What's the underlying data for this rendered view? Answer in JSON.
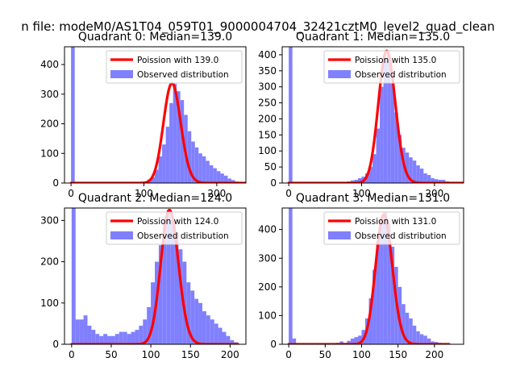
{
  "figure": {
    "suptitle": "n file: modeM0/AS1T04_059T01_9000004704_32421cztM0_level2_quad_clean"
  },
  "colors": {
    "poisson": "#ff0000",
    "histogram": "#8080ff",
    "axes": "#000000",
    "background": "#ffffff"
  },
  "chart_data": [
    {
      "type": "bar",
      "title": "Quadrant 0: Median=139.0",
      "xlim": [
        -9,
        240
      ],
      "ylim": [
        0,
        460
      ],
      "xticks": [
        0,
        100,
        200
      ],
      "yticks": [
        0,
        100,
        200,
        300,
        400
      ],
      "xlabel": "",
      "ylabel": "",
      "legend_position": "upper right",
      "poisson": {
        "label": "Poission with 139.0",
        "mean": 139.0,
        "peak": 337,
        "x_range": [
          0,
          240
        ]
      },
      "observed": {
        "label": "Observed distribution",
        "bin_width": 5,
        "bin_starts": [
          0,
          5,
          10,
          15,
          20,
          25,
          30,
          35,
          40,
          45,
          50,
          55,
          60,
          65,
          70,
          75,
          80,
          85,
          90,
          95,
          100,
          105,
          110,
          115,
          120,
          125,
          130,
          135,
          140,
          145,
          150,
          155,
          160,
          165,
          170,
          175,
          180,
          185,
          190,
          195,
          200,
          205,
          210,
          215,
          220,
          225
        ],
        "counts": [
          460,
          2,
          2,
          2,
          2,
          2,
          2,
          2,
          2,
          2,
          2,
          2,
          2,
          2,
          2,
          2,
          2,
          2,
          2,
          2,
          5,
          12,
          20,
          45,
          90,
          130,
          190,
          270,
          335,
          310,
          280,
          230,
          175,
          140,
          120,
          100,
          90,
          75,
          60,
          50,
          40,
          32,
          25,
          15,
          10,
          5
        ]
      }
    },
    {
      "type": "bar",
      "title": "Quadrant 1: Median=135.0",
      "xlim": [
        -9,
        240
      ],
      "ylim": [
        0,
        425
      ],
      "xticks": [
        0,
        100,
        200
      ],
      "yticks": [
        0,
        50,
        100,
        150,
        200,
        250,
        300,
        350,
        400
      ],
      "xlabel": "",
      "ylabel": "",
      "legend_position": "upper right",
      "poisson": {
        "label": "Poission with 135.0",
        "mean": 135.0,
        "peak": 412,
        "x_range": [
          0,
          240
        ]
      },
      "observed": {
        "label": "Observed distribution",
        "bin_width": 5,
        "bin_starts": [
          0,
          5,
          10,
          15,
          20,
          25,
          30,
          35,
          40,
          45,
          50,
          55,
          60,
          65,
          70,
          75,
          80,
          85,
          90,
          95,
          100,
          105,
          110,
          115,
          120,
          125,
          130,
          135,
          140,
          145,
          150,
          155,
          160,
          165,
          170,
          175,
          180,
          185,
          190,
          195,
          200,
          205,
          210,
          215,
          220
        ],
        "counts": [
          425,
          2,
          2,
          2,
          2,
          2,
          2,
          2,
          2,
          2,
          2,
          2,
          2,
          2,
          2,
          2,
          5,
          8,
          10,
          15,
          20,
          30,
          50,
          90,
          170,
          300,
          390,
          400,
          310,
          220,
          150,
          110,
          95,
          80,
          70,
          55,
          45,
          30,
          25,
          15,
          12,
          10,
          10,
          5,
          3
        ]
      }
    },
    {
      "type": "bar",
      "title": "Quadrant 2: Median=124.0",
      "xlim": [
        -9,
        220
      ],
      "ylim": [
        0,
        330
      ],
      "xticks": [
        0,
        50,
        100,
        150,
        200
      ],
      "yticks": [
        0,
        100,
        200,
        300
      ],
      "xlabel": "",
      "ylabel": "",
      "legend_position": "upper right",
      "poisson": {
        "label": "Poission with 124.0",
        "mean": 124.0,
        "peak": 325,
        "x_range": [
          0,
          210
        ]
      },
      "observed": {
        "label": "Observed distribution",
        "bin_width": 5,
        "bin_starts": [
          0,
          5,
          10,
          15,
          20,
          25,
          30,
          35,
          40,
          45,
          50,
          55,
          60,
          65,
          70,
          75,
          80,
          85,
          90,
          95,
          100,
          105,
          110,
          115,
          120,
          125,
          130,
          135,
          140,
          145,
          150,
          155,
          160,
          165,
          170,
          175,
          180,
          185,
          190,
          195,
          200,
          205
        ],
        "counts": [
          330,
          60,
          60,
          70,
          45,
          35,
          25,
          20,
          25,
          20,
          20,
          25,
          30,
          30,
          25,
          30,
          35,
          45,
          60,
          90,
          150,
          200,
          240,
          300,
          325,
          300,
          270,
          230,
          200,
          150,
          130,
          110,
          100,
          80,
          70,
          60,
          50,
          40,
          30,
          20,
          10,
          5
        ]
      }
    },
    {
      "type": "bar",
      "title": "Quadrant 3: Median=131.0",
      "xlim": [
        -9,
        240
      ],
      "ylim": [
        0,
        475
      ],
      "xticks": [
        0,
        50,
        100,
        150,
        200
      ],
      "yticks": [
        0,
        100,
        200,
        300,
        400
      ],
      "xlabel": "",
      "ylabel": "",
      "legend_position": "upper right",
      "poisson": {
        "label": "Poission with 131.0",
        "mean": 131.0,
        "peak": 452,
        "x_range": [
          0,
          220
        ]
      },
      "observed": {
        "label": "Observed distribution",
        "bin_width": 5,
        "bin_starts": [
          0,
          5,
          10,
          15,
          20,
          25,
          30,
          35,
          40,
          45,
          50,
          55,
          60,
          65,
          70,
          75,
          80,
          85,
          90,
          95,
          100,
          105,
          110,
          115,
          120,
          125,
          130,
          135,
          140,
          145,
          150,
          155,
          160,
          165,
          170,
          175,
          180,
          185,
          190,
          195,
          200,
          205,
          210
        ],
        "counts": [
          475,
          20,
          3,
          3,
          3,
          3,
          3,
          3,
          3,
          3,
          3,
          3,
          3,
          5,
          10,
          5,
          12,
          20,
          25,
          30,
          50,
          90,
          160,
          260,
          360,
          440,
          460,
          420,
          340,
          270,
          200,
          140,
          110,
          90,
          65,
          45,
          35,
          30,
          20,
          10,
          8,
          5,
          3
        ]
      }
    }
  ]
}
